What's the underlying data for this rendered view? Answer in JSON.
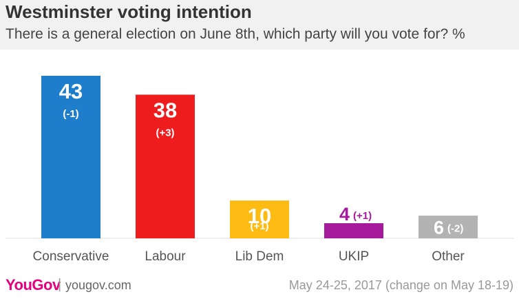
{
  "header": {
    "title": "Westminster voting intention",
    "subtitle": "There is a general election on June 8th, which party will you vote for? %"
  },
  "footer": {
    "brand": "YouGov",
    "separator": "|",
    "url": "yougov.com",
    "note": "May 24-25, 2017 (change on May 18-19)"
  },
  "chart_data": {
    "type": "bar",
    "title": "Westminster voting intention",
    "subtitle": "There is a general election on June 8th, which party will you vote for? %",
    "categories": [
      "Conservative",
      "Labour",
      "Lib Dem",
      "UKIP",
      "Other"
    ],
    "values": [
      43,
      38,
      10,
      4,
      6
    ],
    "changes": [
      "(-1)",
      "(+3)",
      "(+1)",
      "(+1)",
      "(-2)"
    ],
    "colors": [
      "#1f7ecb",
      "#ee1c1c",
      "#fdbb13",
      "#a5199b",
      "#b3b3b3"
    ],
    "label_colors": [
      "#ffffff",
      "#ffffff",
      "#ffffff",
      "#a5199b",
      "#ffffff"
    ],
    "ylim": [
      0,
      43
    ],
    "grid": false
  }
}
